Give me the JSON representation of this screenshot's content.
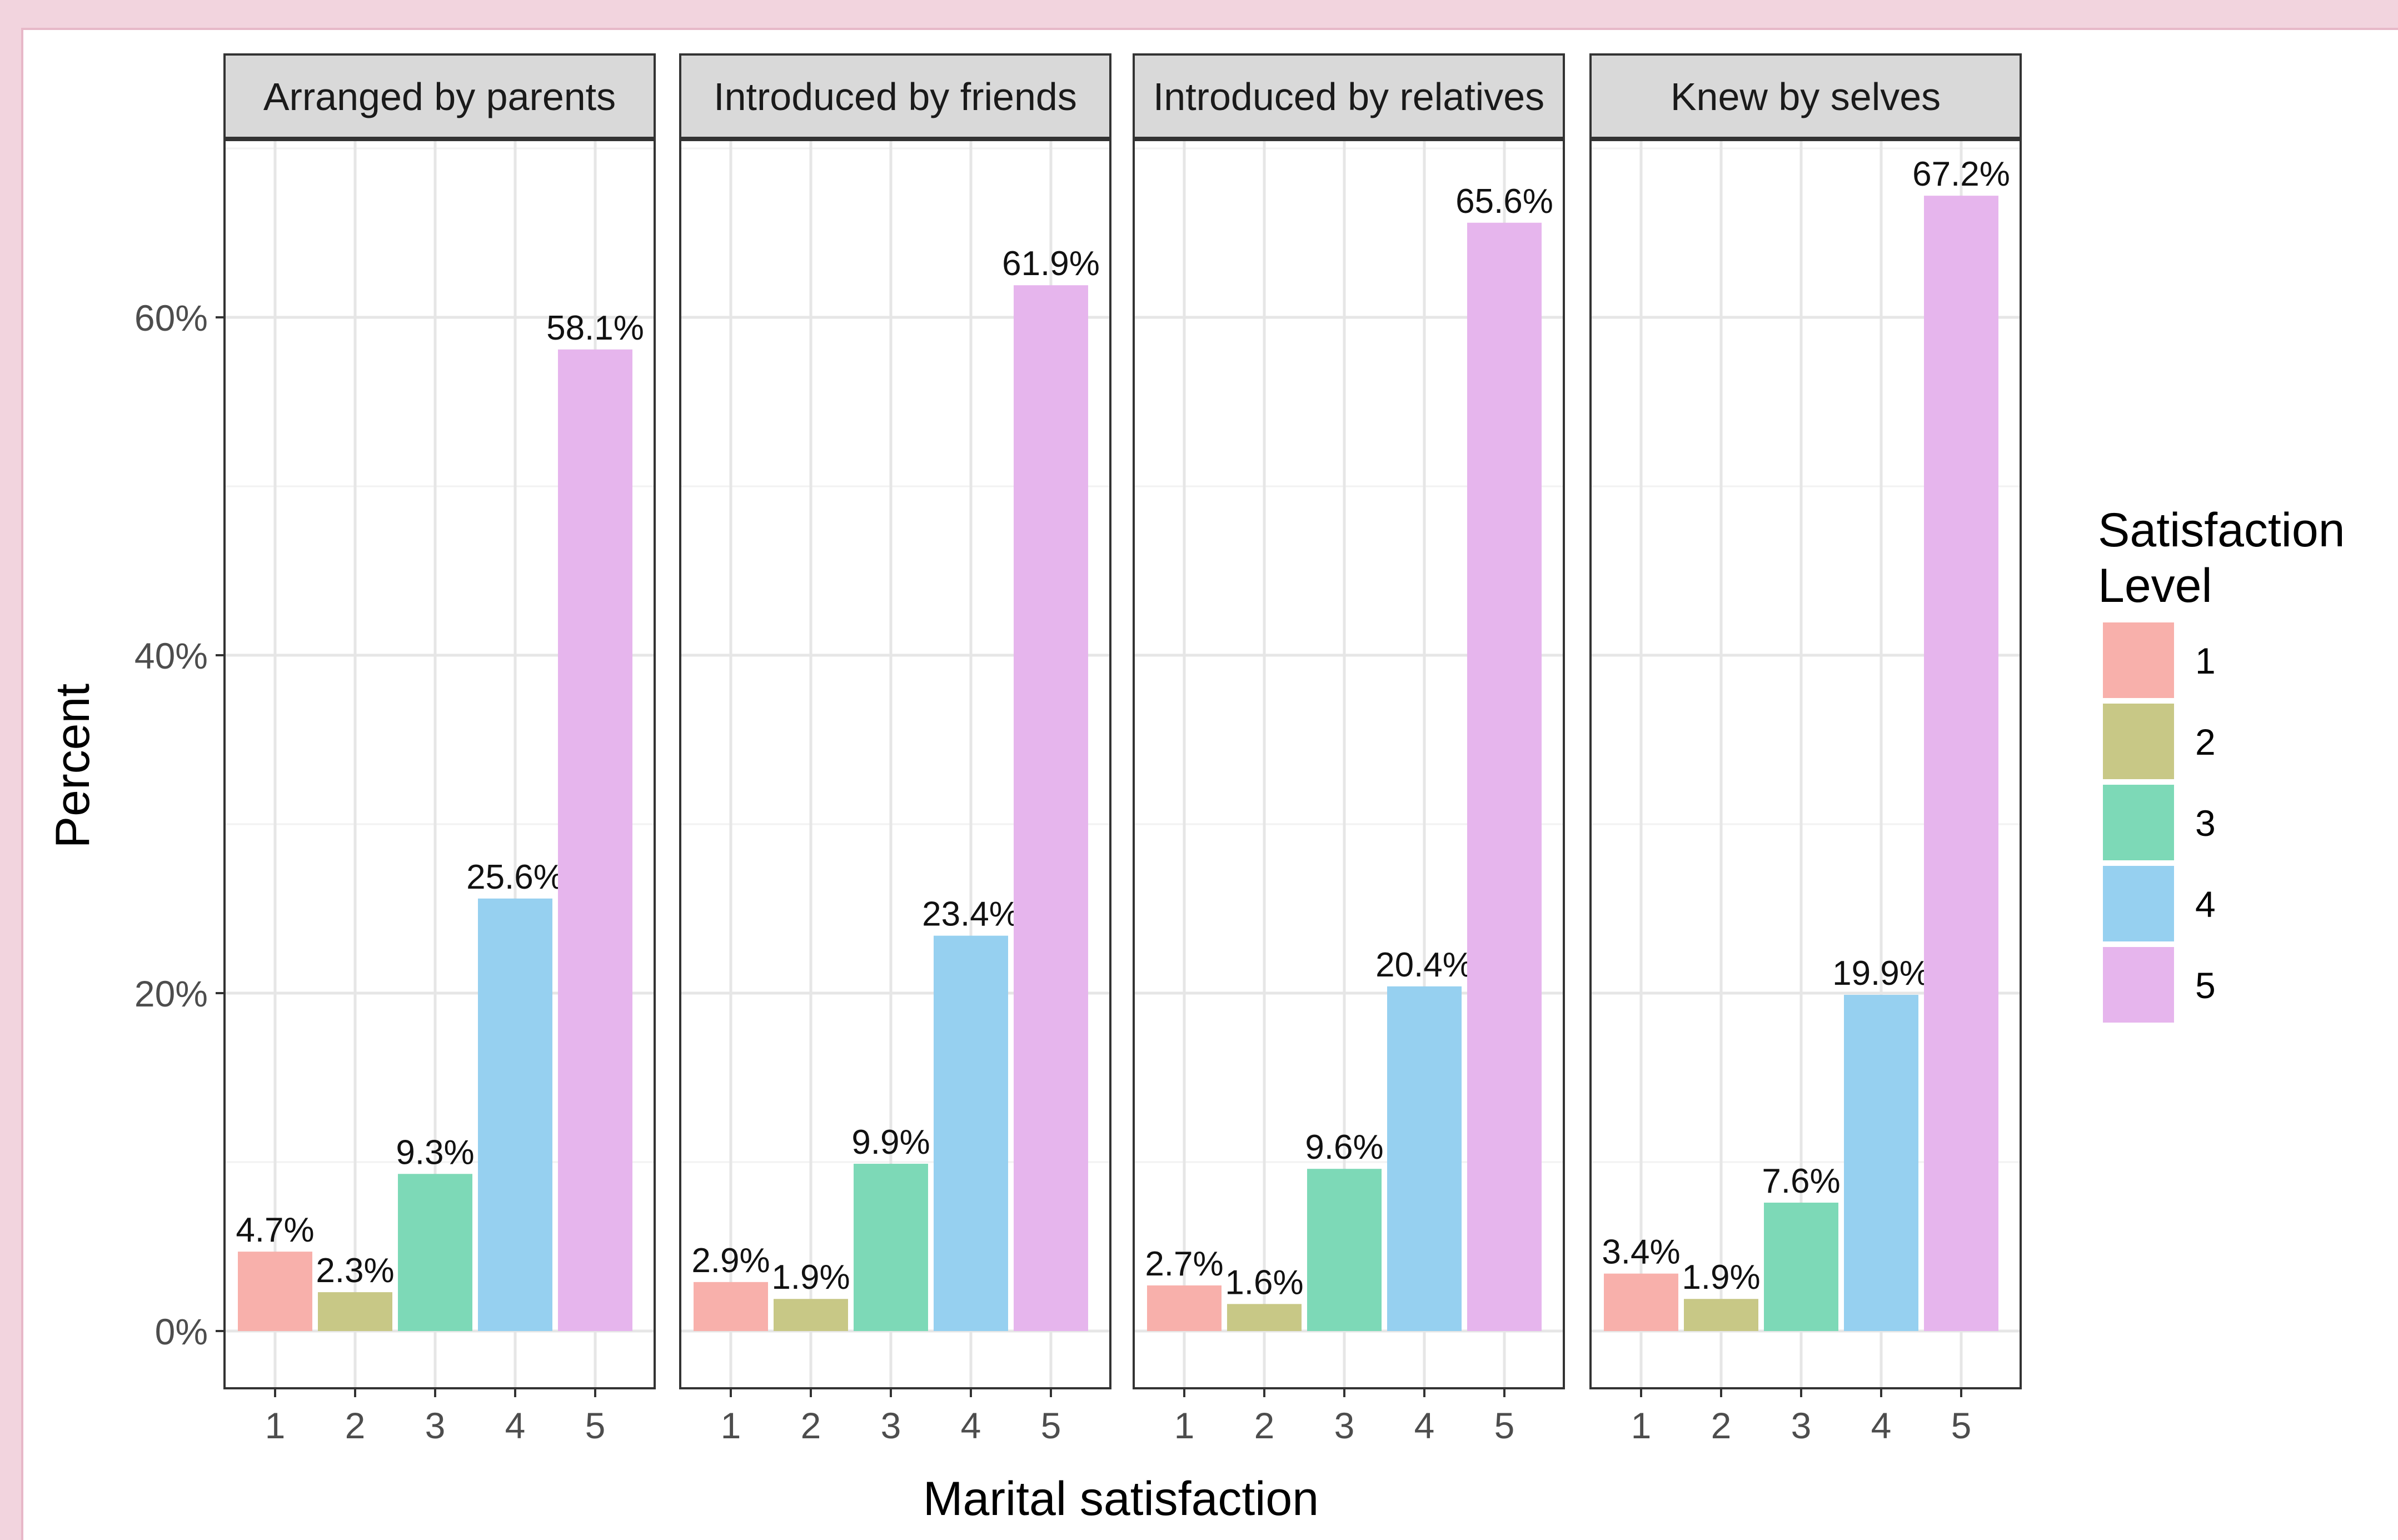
{
  "chart_data": {
    "type": "bar",
    "xlabel": "Marital satisfaction",
    "ylabel": "Percent",
    "ylim": [
      0,
      70
    ],
    "y_ticks": [
      0,
      20,
      40,
      60
    ],
    "y_tick_labels": [
      "0%",
      "20%",
      "40%",
      "60%"
    ],
    "categories": [
      "1",
      "2",
      "3",
      "4",
      "5"
    ],
    "grid": true,
    "legend_position": "right",
    "legend": {
      "title_line1": "Satisfaction",
      "title_line2": "Level",
      "items": [
        "1",
        "2",
        "3",
        "4",
        "5"
      ]
    },
    "colors": [
      "#f8b0ab",
      "#c8c886",
      "#7dd9b7",
      "#96d0f0",
      "#e6b5ed"
    ],
    "facets": [
      {
        "label": "Arranged by parents",
        "values": [
          4.7,
          2.3,
          9.3,
          25.6,
          58.1
        ],
        "value_labels": [
          "4.7%",
          "2.3%",
          "9.3%",
          "25.6%",
          "58.1%"
        ]
      },
      {
        "label": "Introduced by friends",
        "values": [
          2.9,
          1.9,
          9.9,
          23.4,
          61.9
        ],
        "value_labels": [
          "2.9%",
          "1.9%",
          "9.9%",
          "23.4%",
          "61.9%"
        ]
      },
      {
        "label": "Introduced by relatives",
        "values": [
          2.7,
          1.6,
          9.6,
          20.4,
          65.6
        ],
        "value_labels": [
          "2.7%",
          "1.6%",
          "9.6%",
          "20.4%",
          "65.6%"
        ]
      },
      {
        "label": "Knew by selves",
        "values": [
          3.4,
          1.9,
          7.6,
          19.9,
          67.2
        ],
        "value_labels": [
          "3.4%",
          "1.9%",
          "7.6%",
          "19.9%",
          "67.2%"
        ]
      }
    ]
  }
}
